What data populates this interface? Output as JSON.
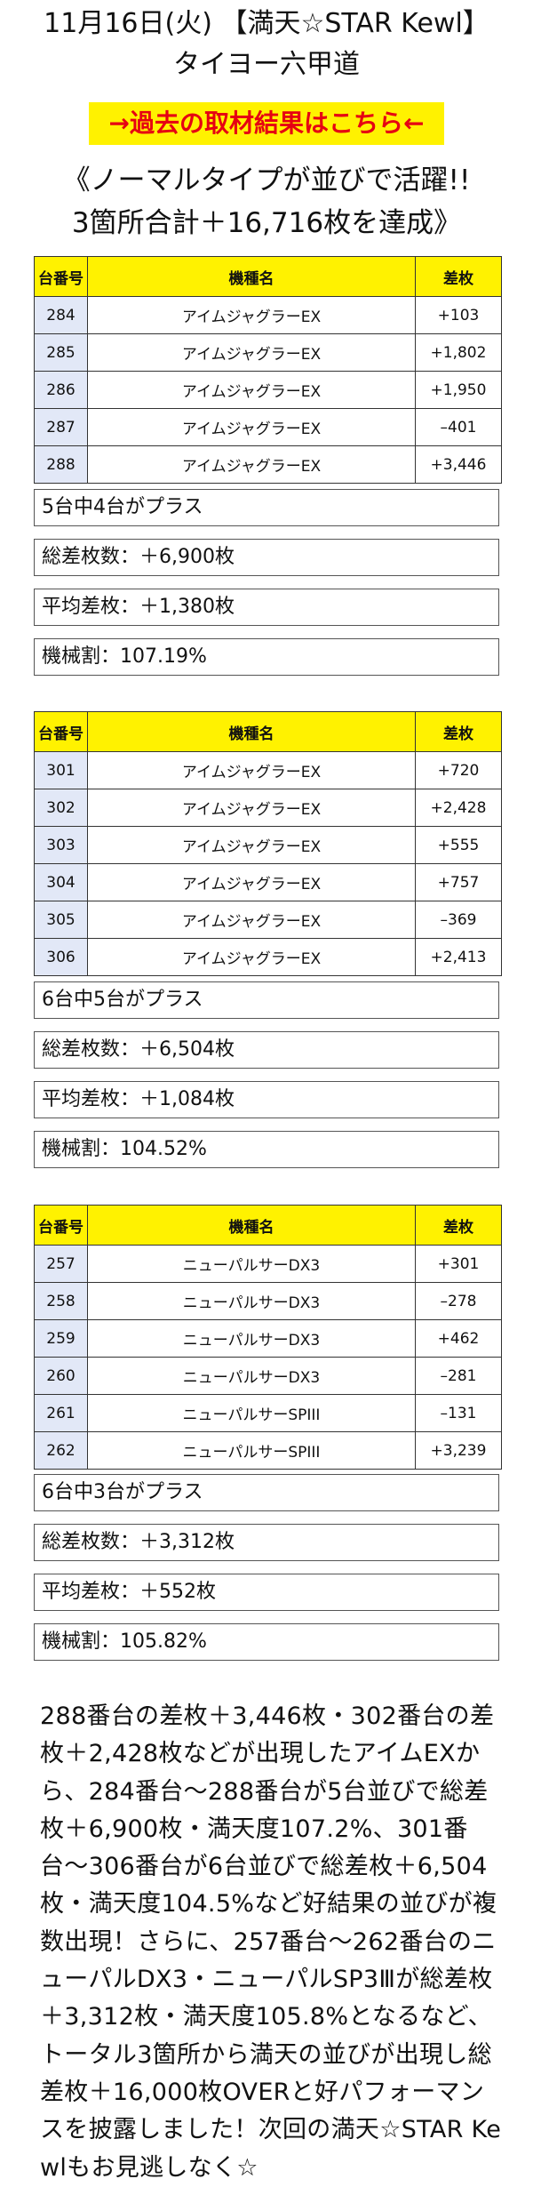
{
  "header": {
    "title": "11月16日(火) 【満天☆STAR Kewl】",
    "store": "タイヨー六甲道"
  },
  "past_link": "→過去の取材結果はこちら←",
  "headline": {
    "line1": "《ノーマルタイプが並びで活躍!!",
    "line2": "3箇所合計＋16,716枚を達成》"
  },
  "table_headers": {
    "no": "台番号",
    "model": "機種名",
    "diff": "差枚"
  },
  "sections": [
    {
      "rows": [
        {
          "no": "284",
          "model": "アイムジャグラーEX",
          "diff": "+103"
        },
        {
          "no": "285",
          "model": "アイムジャグラーEX",
          "diff": "+1,802"
        },
        {
          "no": "286",
          "model": "アイムジャグラーEX",
          "diff": "+1,950"
        },
        {
          "no": "287",
          "model": "アイムジャグラーEX",
          "diff": "–401"
        },
        {
          "no": "288",
          "model": "アイムジャグラーEX",
          "diff": "+3,446"
        }
      ],
      "summary": {
        "plus": "5台中4台がプラス",
        "total": "総差枚数：＋6,900枚",
        "avg": "平均差枚：＋1,380枚",
        "rate": "機械割：107.19%"
      }
    },
    {
      "rows": [
        {
          "no": "301",
          "model": "アイムジャグラーEX",
          "diff": "+720"
        },
        {
          "no": "302",
          "model": "アイムジャグラーEX",
          "diff": "+2,428"
        },
        {
          "no": "303",
          "model": "アイムジャグラーEX",
          "diff": "+555"
        },
        {
          "no": "304",
          "model": "アイムジャグラーEX",
          "diff": "+757"
        },
        {
          "no": "305",
          "model": "アイムジャグラーEX",
          "diff": "–369"
        },
        {
          "no": "306",
          "model": "アイムジャグラーEX",
          "diff": "+2,413"
        }
      ],
      "summary": {
        "plus": "6台中5台がプラス",
        "total": "総差枚数：＋6,504枚",
        "avg": "平均差枚：＋1,084枚",
        "rate": "機械割：104.52%"
      }
    },
    {
      "rows": [
        {
          "no": "257",
          "model": "ニューパルサーDX3",
          "diff": "+301"
        },
        {
          "no": "258",
          "model": "ニューパルサーDX3",
          "diff": "–278"
        },
        {
          "no": "259",
          "model": "ニューパルサーDX3",
          "diff": "+462"
        },
        {
          "no": "260",
          "model": "ニューパルサーDX3",
          "diff": "–281"
        },
        {
          "no": "261",
          "model": "ニューパルサーSPIII",
          "diff": "–131"
        },
        {
          "no": "262",
          "model": "ニューパルサーSPIII",
          "diff": "+3,239"
        }
      ],
      "summary": {
        "plus": "6台中3台がプラス",
        "total": "総差枚数：＋3,312枚",
        "avg": "平均差枚：＋552枚",
        "rate": "機械割：105.82%"
      }
    }
  ],
  "body_text": "288番台の差枚＋3,446枚・302番台の差枚＋2,428枚などが出現したアイムEXから、284番台〜288番台が5台並びで総差枚＋6,900枚・満天度107.2%、301番台〜306番台が6台並びで総差枚＋6,504枚・満天度104.5%など好結果の並びが複数出現！さらに、257番台〜262番台のニューパルDX3・ニューパルSP3Ⅲが総差枚＋3,312枚・満天度105.8%となるなど、トータル3箇所から満天の並びが出現し総差枚＋16,000枚OVERと好パフォーマンスを披露しました！次回の満天☆STAR Kewlもお見逃しなく☆"
}
